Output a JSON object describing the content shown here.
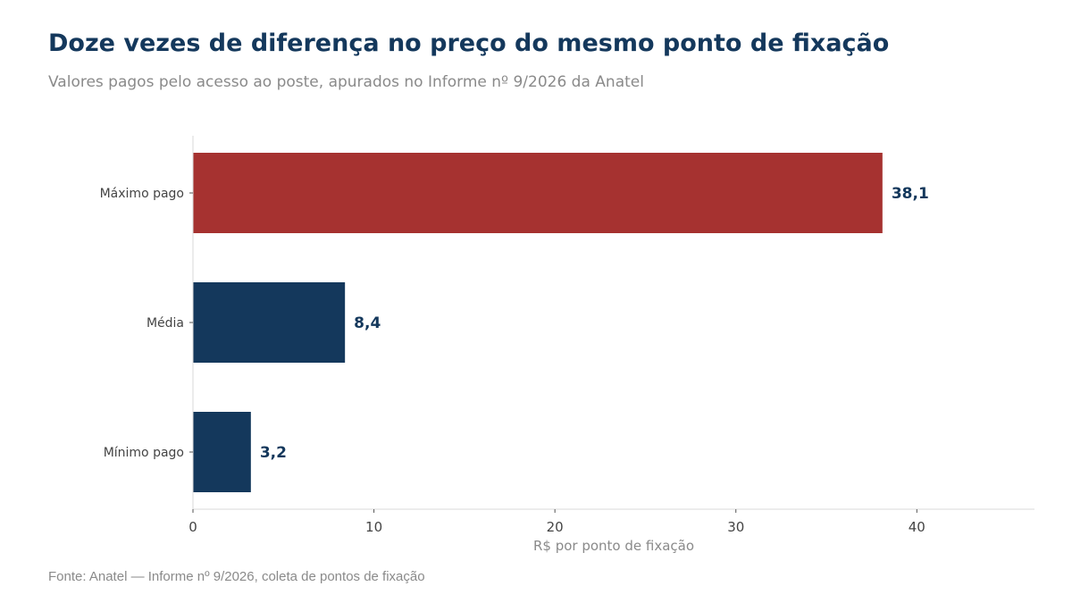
{
  "header": {
    "title": "Doze vezes de diferença no preço do mesmo ponto de fixação",
    "subtitle": "Valores pagos pelo acesso ao poste, apurados no Informe nº 9/2026 da Anatel"
  },
  "footer": {
    "source": "Fonte: Anatel — Informe nº 9/2026, coleta de pontos de fixação"
  },
  "chart_data": {
    "type": "bar",
    "orientation": "horizontal",
    "title": "",
    "xlabel": "R$ por ponto de fixação",
    "ylabel": "",
    "categories": [
      "Máximo pago",
      "Média",
      "Mínimo pago"
    ],
    "values": [
      38.1,
      8.4,
      3.2
    ],
    "value_labels": [
      "38,1",
      "8,4",
      "3,2"
    ],
    "bar_colors": [
      "#a63230",
      "#14385c",
      "#14385c"
    ],
    "label_colors": [
      "#14385c",
      "#14385c",
      "#14385c"
    ],
    "xlim": [
      0,
      46.5
    ],
    "xticks": [
      0,
      10,
      20,
      30,
      40
    ],
    "xtick_labels": [
      "0",
      "10",
      "20",
      "30",
      "40"
    ],
    "grid": false,
    "legend": "none"
  }
}
